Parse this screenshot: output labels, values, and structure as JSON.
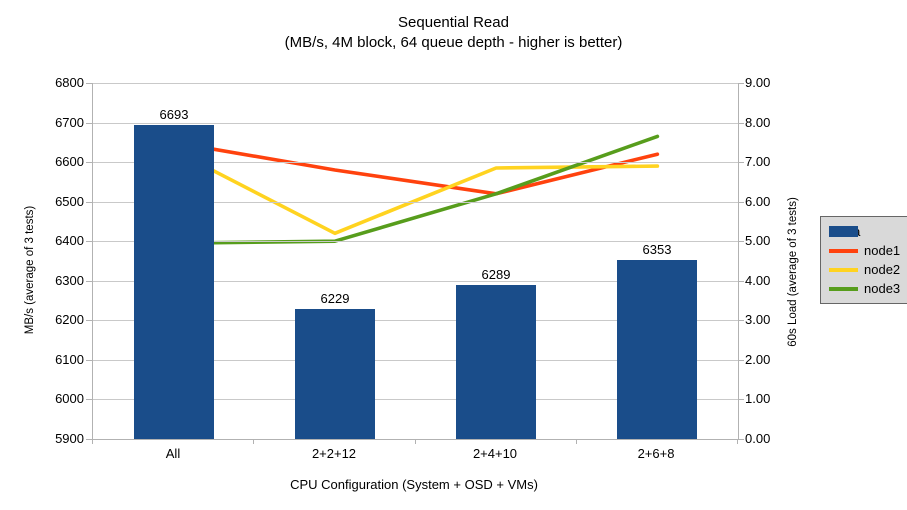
{
  "chart_data": {
    "type": "bar+line",
    "title": "Sequential Read",
    "subtitle": "(MB/s, 4M block, 64 queue depth - higher is better)",
    "categories": [
      "All",
      "2+2+12",
      "2+4+10",
      "2+6+8"
    ],
    "bar_series": {
      "name": "data",
      "color": "#1a4d8a",
      "axis": "left",
      "values": [
        6693,
        6229,
        6289,
        6353
      ]
    },
    "line_series": [
      {
        "name": "node1",
        "color": "#ff420e",
        "axis": "right",
        "values": [
          7.5,
          6.8,
          6.2,
          7.2
        ]
      },
      {
        "name": "node2",
        "color": "#ffd320",
        "axis": "right",
        "values": [
          7.3,
          5.2,
          6.85,
          6.9
        ]
      },
      {
        "name": "node3",
        "color": "#579d1c",
        "axis": "right",
        "values": [
          4.95,
          5.0,
          6.2,
          7.65
        ]
      }
    ],
    "left_axis": {
      "label": "MB/s (average of 3 tests)",
      "min": 5900,
      "max": 6800,
      "step": 100
    },
    "right_axis": {
      "label": "60s Load (average of 3 tests)",
      "min": 0.0,
      "max": 9.0,
      "step": 1.0,
      "decimals": 2
    },
    "x_axis": {
      "label": "CPU Configuration (System + OSD + VMs)"
    },
    "legend": {
      "position": "right",
      "items": [
        {
          "label": "data",
          "color": "#1a4d8a",
          "swatch": "bar"
        },
        {
          "label": "node1",
          "color": "#ff420e",
          "swatch": "line"
        },
        {
          "label": "node2",
          "color": "#ffd320",
          "swatch": "line"
        },
        {
          "label": "node3",
          "color": "#579d1c",
          "swatch": "line"
        }
      ]
    },
    "grid": true
  }
}
